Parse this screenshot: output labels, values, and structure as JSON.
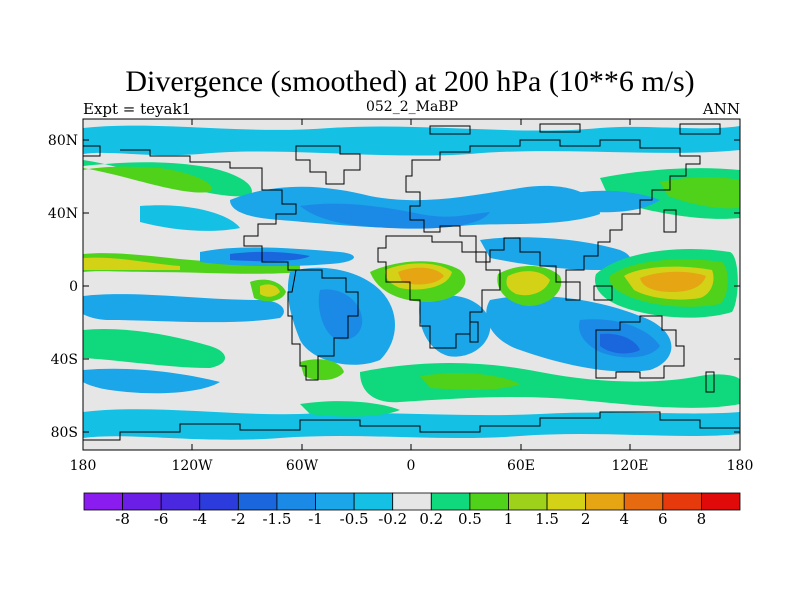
{
  "title": "Divergence (smoothed) at 200 hPa (10**6 m/s)",
  "left_label": "Expt = teyak1",
  "center_label": "052_2_MaBP",
  "right_label": "ANN",
  "y_ticks": [
    "80N",
    "40N",
    "0",
    "40S",
    "80S"
  ],
  "x_ticks": [
    "180",
    "120W",
    "60W",
    "0",
    "60E",
    "120E",
    "180"
  ],
  "colorbar": {
    "labels": [
      "-8",
      "-6",
      "-4",
      "-2",
      "-1.5",
      "-1",
      "-0.5",
      "-0.2",
      "0.2",
      "0.5",
      "1",
      "1.5",
      "2",
      "4",
      "6",
      "8"
    ],
    "colors": [
      "#8a1cf0",
      "#6a1ee6",
      "#4a28e0",
      "#2c3cdc",
      "#1a66dd",
      "#1a8ae6",
      "#1aa6e8",
      "#14c0e4",
      "#e6e6e6",
      "#10d87c",
      "#50d21a",
      "#9ed21a",
      "#d4d216",
      "#e6a614",
      "#e66a10",
      "#e63a0c",
      "#e00a0a"
    ]
  }
}
